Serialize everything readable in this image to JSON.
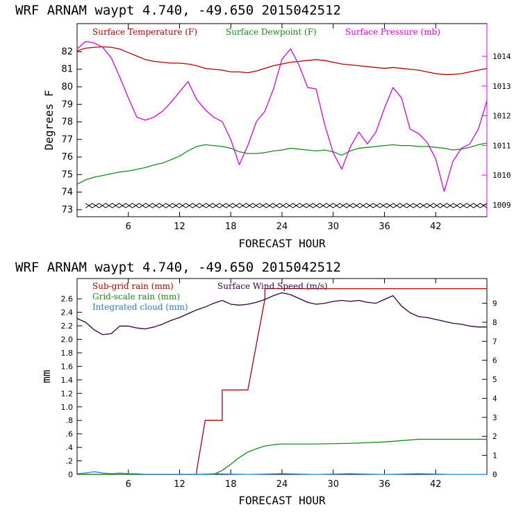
{
  "chart_data": [
    {
      "type": "line",
      "title": "WRF   ARNAM waypt    4.740, -49.650  2015042512",
      "xlabel": "FORECAST HOUR",
      "ylabel": "Degrees F",
      "xlim": [
        0,
        48
      ],
      "ylim": [
        72.6,
        83.6
      ],
      "y2lim": [
        1008.6,
        1015.1
      ],
      "x_ticks": [
        "6",
        "12",
        "18",
        "24",
        "30",
        "36",
        "42"
      ],
      "y_ticks": [
        "73",
        "74",
        "75",
        "76",
        "77",
        "78",
        "79",
        "80",
        "81",
        "82"
      ],
      "y2_ticks": [
        "1009",
        "1010",
        "1011",
        "1012",
        "1013",
        "1014"
      ],
      "series": [
        {
          "name": "Surface Temperature (F)",
          "color": "#b00000",
          "axis": "left",
          "x": [
            0,
            1,
            2,
            3,
            4,
            5,
            6,
            7,
            8,
            9,
            10,
            11,
            12,
            13,
            14,
            15,
            16,
            17,
            18,
            19,
            20,
            21,
            22,
            23,
            24,
            25,
            26,
            27,
            28,
            29,
            30,
            31,
            32,
            33,
            34,
            35,
            36,
            37,
            38,
            39,
            40,
            41,
            42,
            43,
            44,
            45,
            46,
            47,
            48
          ],
          "values": [
            82.05,
            82.2,
            82.25,
            82.28,
            82.25,
            82.15,
            81.95,
            81.75,
            81.55,
            81.45,
            81.4,
            81.35,
            81.35,
            81.3,
            81.2,
            81.05,
            81.0,
            80.95,
            80.85,
            80.85,
            80.8,
            80.9,
            81.05,
            81.2,
            81.3,
            81.4,
            81.45,
            81.5,
            81.55,
            81.5,
            81.4,
            81.3,
            81.25,
            81.2,
            81.15,
            81.1,
            81.05,
            81.1,
            81.05,
            81.0,
            80.95,
            80.85,
            80.75,
            80.7,
            80.7,
            80.75,
            80.85,
            80.95,
            81.05
          ]
        },
        {
          "name": "Surface Dewpoint (F)",
          "color": "#1a8a1a",
          "axis": "left",
          "x": [
            0,
            1,
            2,
            3,
            4,
            5,
            6,
            7,
            8,
            9,
            10,
            11,
            12,
            13,
            14,
            15,
            16,
            17,
            18,
            19,
            20,
            21,
            22,
            23,
            24,
            25,
            26,
            27,
            28,
            29,
            30,
            31,
            32,
            33,
            34,
            35,
            36,
            37,
            38,
            39,
            40,
            41,
            42,
            43,
            44,
            45,
            46,
            47,
            48
          ],
          "values": [
            74.45,
            74.7,
            74.85,
            74.95,
            75.05,
            75.15,
            75.2,
            75.3,
            75.4,
            75.55,
            75.65,
            75.85,
            76.05,
            76.35,
            76.6,
            76.7,
            76.65,
            76.6,
            76.5,
            76.3,
            76.2,
            76.2,
            76.25,
            76.35,
            76.4,
            76.5,
            76.45,
            76.4,
            76.35,
            76.4,
            76.3,
            76.1,
            76.35,
            76.5,
            76.55,
            76.6,
            76.65,
            76.7,
            76.65,
            76.65,
            76.6,
            76.6,
            76.55,
            76.5,
            76.4,
            76.45,
            76.55,
            76.7,
            76.8
          ]
        },
        {
          "name": "Surface Pressure (mb)",
          "color": "#e000e0",
          "axis": "right",
          "x": [
            0,
            1,
            2,
            3,
            4,
            5,
            6,
            7,
            8,
            9,
            10,
            11,
            12,
            13,
            14,
            15,
            16,
            17,
            18,
            19,
            20,
            21,
            22,
            23,
            24,
            25,
            26,
            27,
            28,
            29,
            30,
            31,
            32,
            33,
            34,
            35,
            36,
            37,
            38,
            39,
            40,
            41,
            42,
            43,
            44,
            45,
            46,
            47,
            48
          ],
          "values": [
            1014.25,
            1014.5,
            1014.45,
            1014.3,
            1013.95,
            1013.3,
            1012.6,
            1011.95,
            1011.85,
            1011.95,
            1012.15,
            1012.45,
            1012.8,
            1013.15,
            1012.55,
            1012.2,
            1011.95,
            1011.8,
            1011.2,
            1010.35,
            1011.0,
            1011.8,
            1012.15,
            1012.9,
            1013.9,
            1014.25,
            1013.7,
            1012.95,
            1012.9,
            1011.7,
            1010.75,
            1010.2,
            1010.95,
            1011.45,
            1011.05,
            1011.45,
            1012.25,
            1012.95,
            1012.6,
            1011.55,
            1011.4,
            1011.1,
            1010.55,
            1009.45,
            1010.45,
            1010.9,
            1011.05,
            1011.55,
            1012.5
          ]
        }
      ],
      "extra_series": [
        {
          "name": "zigzag trace",
          "color": "#000000",
          "axis": "right",
          "x_range": [
            1,
            48
          ],
          "value_low": 1008.9,
          "value_high": 1009.05
        }
      ],
      "legend_position": "top-left",
      "grid": false
    },
    {
      "type": "line",
      "title": "WRF   ARNAM waypt    4.740, -49.650  2015042512",
      "xlabel": "FORECAST HOUR",
      "ylabel": "mm",
      "xlim": [
        0,
        48
      ],
      "ylim": [
        0,
        2.9
      ],
      "y2lim": [
        0,
        10.3
      ],
      "x_ticks": [
        "6",
        "12",
        "18",
        "24",
        "30",
        "36",
        "42"
      ],
      "y_ticks": [
        "0",
        ".2",
        ".4",
        ".6",
        ".8",
        "1.0",
        "1.2",
        "1.4",
        "1.6",
        "1.8",
        "2.0",
        "2.2",
        "2.4",
        "2.6"
      ],
      "y2_ticks": [
        "0",
        "1",
        "2",
        "3",
        "4",
        "5",
        "6",
        "7",
        "8",
        "9"
      ],
      "series": [
        {
          "name": "Sub-grid rain (mm)",
          "color": "#b00000",
          "axis": "left",
          "x": [
            0,
            14,
            14,
            15,
            15,
            17,
            17,
            20,
            20,
            22,
            22,
            48
          ],
          "values": [
            0,
            0,
            0.05,
            0.8,
            0.8,
            0.8,
            1.25,
            1.25,
            1.25,
            2.6,
            2.75,
            2.75
          ]
        },
        {
          "name": "Grid-scale rain (mm)",
          "color": "#1a8a1a",
          "axis": "left",
          "x": [
            0,
            16,
            17,
            18,
            19,
            20,
            21,
            22,
            23,
            24,
            28,
            32,
            36,
            40,
            44,
            48
          ],
          "values": [
            0,
            0,
            0.06,
            0.15,
            0.25,
            0.33,
            0.38,
            0.42,
            0.44,
            0.45,
            0.45,
            0.46,
            0.48,
            0.52,
            0.52,
            0.52
          ]
        },
        {
          "name": "Integrated cloud (mm)",
          "color": "#1a7fe0",
          "axis": "left",
          "x": [
            0,
            1,
            2,
            3,
            4,
            5,
            6,
            7,
            8,
            10,
            12,
            14,
            16,
            20,
            24,
            28,
            32,
            36,
            40,
            44,
            48
          ],
          "values": [
            0.01,
            0.02,
            0.04,
            0.02,
            0.01,
            0.02,
            0.01,
            0.01,
            0.0,
            0.0,
            0.0,
            0.0,
            0.01,
            0.0,
            0.01,
            0.0,
            0.01,
            0.0,
            0.01,
            0.0,
            0.0
          ]
        },
        {
          "name": "Surface Wind Speed (m/s)",
          "color": "#300040",
          "axis": "right",
          "x": [
            0,
            1,
            2,
            3,
            4,
            5,
            6,
            7,
            8,
            9,
            10,
            11,
            12,
            13,
            14,
            15,
            16,
            17,
            18,
            19,
            20,
            21,
            22,
            23,
            24,
            25,
            26,
            27,
            28,
            29,
            30,
            31,
            32,
            33,
            34,
            35,
            36,
            37,
            38,
            39,
            40,
            41,
            42,
            43,
            44,
            45,
            46,
            47,
            48
          ],
          "values": [
            8.2,
            8.0,
            7.6,
            7.35,
            7.4,
            7.8,
            7.8,
            7.7,
            7.65,
            7.75,
            7.9,
            8.1,
            8.25,
            8.45,
            8.65,
            8.8,
            9.0,
            9.15,
            8.95,
            8.9,
            8.95,
            9.05,
            9.2,
            9.4,
            9.55,
            9.45,
            9.25,
            9.05,
            8.95,
            9.0,
            9.1,
            9.15,
            9.1,
            9.15,
            9.05,
            9.0,
            9.2,
            9.4,
            8.85,
            8.5,
            8.3,
            8.25,
            8.15,
            8.05,
            7.95,
            7.9,
            7.8,
            7.75,
            7.75
          ]
        }
      ],
      "legend_position": "top-left",
      "grid": false
    }
  ]
}
